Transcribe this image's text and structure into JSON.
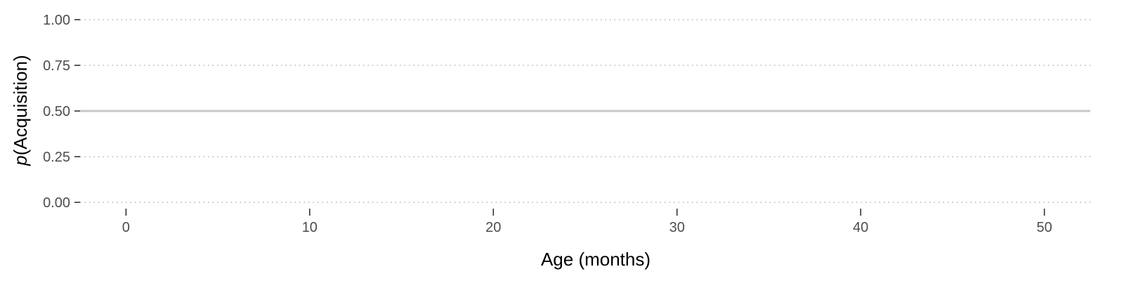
{
  "chart_data": {
    "type": "line",
    "title": "",
    "xlabel": "Age (months)",
    "ylabel_italic": "p",
    "ylabel_rest": "(Acquisition)",
    "xlim": [
      -2.5,
      52.5
    ],
    "ylim": [
      0,
      1
    ],
    "x_ticks": [
      0,
      10,
      20,
      30,
      40,
      50
    ],
    "x_tick_labels": [
      "0",
      "10",
      "20",
      "30",
      "40",
      "50"
    ],
    "y_ticks": [
      0,
      0.25,
      0.5,
      0.75,
      1.0
    ],
    "y_tick_labels": [
      "0.00",
      "0.25",
      "0.50",
      "0.75",
      "1.00"
    ],
    "grid": "horizontal dotted",
    "reference_line": {
      "y": 0.5,
      "color": "#c8c8c8"
    },
    "series": []
  }
}
